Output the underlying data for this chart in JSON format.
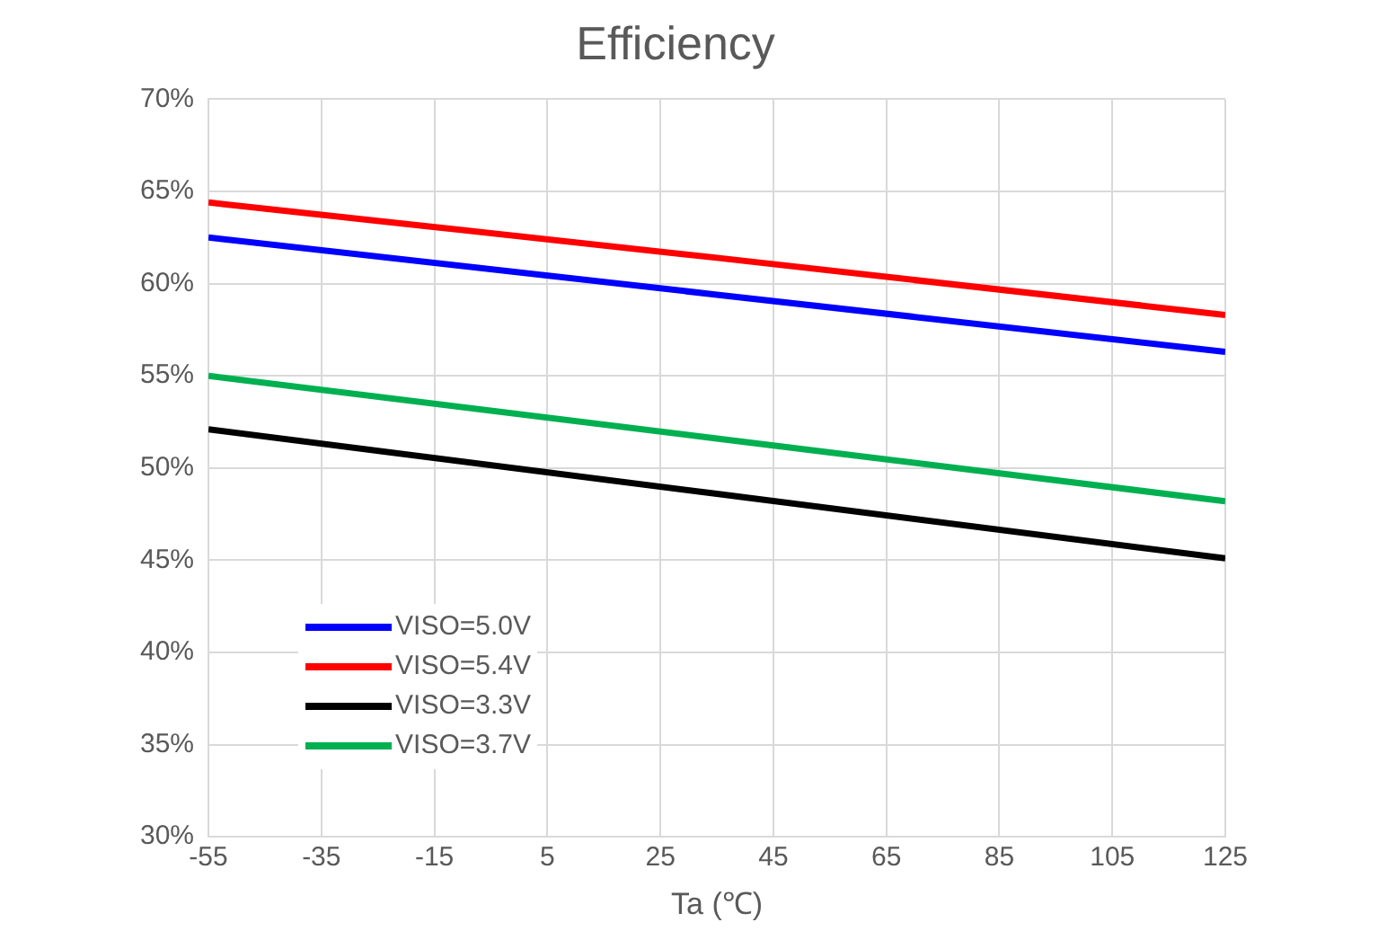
{
  "chart_data": {
    "type": "line",
    "title": "Efficiency",
    "xlabel": "Ta (℃)",
    "x": [
      -55,
      35,
      125
    ],
    "series": [
      {
        "name": "VISO=5.0V",
        "color": "#0000ff",
        "values": [
          62.5,
          59.4,
          56.3
        ]
      },
      {
        "name": "VISO=5.4V",
        "color": "#ff0000",
        "values": [
          64.4,
          61.4,
          58.3
        ]
      },
      {
        "name": "VISO=3.3V",
        "color": "#000000",
        "values": [
          52.1,
          48.6,
          45.1
        ]
      },
      {
        "name": "VISO=3.7V",
        "color": "#00b050",
        "values": [
          55.0,
          51.6,
          48.2
        ]
      }
    ],
    "xlim": [
      -55,
      125
    ],
    "xticks": [
      -55,
      -35,
      -15,
      5,
      25,
      45,
      65,
      85,
      105,
      125
    ],
    "ylim": [
      30,
      70
    ],
    "yticks": [
      {
        "value": 30,
        "label": "30%"
      },
      {
        "value": 35,
        "label": "35%"
      },
      {
        "value": 40,
        "label": "40%"
      },
      {
        "value": 45,
        "label": "45%"
      },
      {
        "value": 50,
        "label": "50%"
      },
      {
        "value": 55,
        "label": "55%"
      },
      {
        "value": 60,
        "label": "60%"
      },
      {
        "value": 65,
        "label": "65%"
      },
      {
        "value": 70,
        "label": "70%"
      }
    ],
    "grid": true,
    "legend": "bottom left",
    "marker": "none",
    "line_style": "solid"
  }
}
